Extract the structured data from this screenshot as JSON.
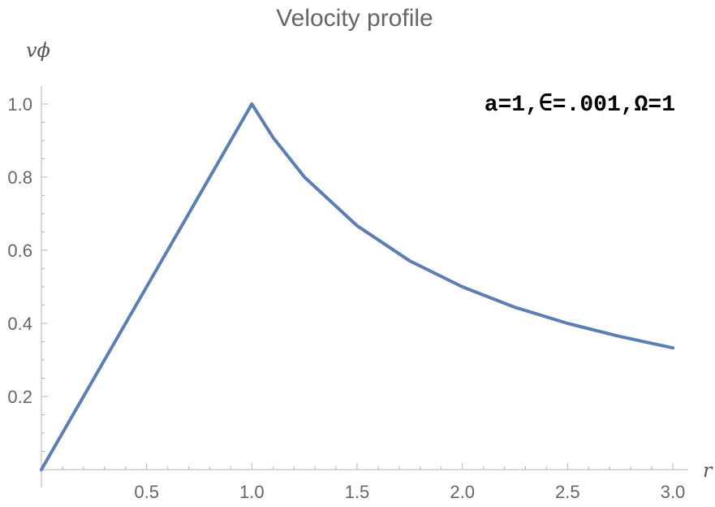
{
  "chart_data": {
    "type": "line",
    "title": "Velocity profile",
    "xlabel": "r",
    "ylabel": "vϕ",
    "xlim": [
      0,
      3.0
    ],
    "ylim": [
      0,
      1.05
    ],
    "x_ticks": [
      "0.5",
      "1.0",
      "1.5",
      "2.0",
      "2.5",
      "3.0"
    ],
    "y_ticks": [
      "0.2",
      "0.4",
      "0.6",
      "0.8",
      "1.0"
    ],
    "annotation": "a=1,∈=.001,Ω=1",
    "line_color": "#5b7fb3",
    "series": [
      {
        "x": [
          0,
          0.25,
          0.5,
          0.75,
          1.0,
          1.1,
          1.25,
          1.5,
          1.75,
          2.0,
          2.25,
          2.5,
          2.75,
          3.0
        ],
        "y": [
          0,
          0.25,
          0.5,
          0.75,
          1.0,
          0.909,
          0.8,
          0.667,
          0.571,
          0.5,
          0.444,
          0.4,
          0.364,
          0.333
        ]
      }
    ]
  }
}
